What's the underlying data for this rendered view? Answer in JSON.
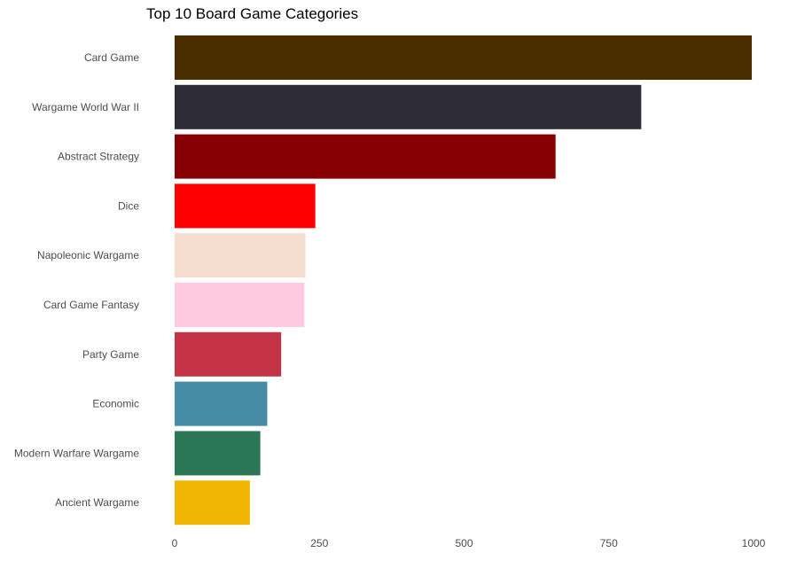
{
  "chart_data": {
    "type": "bar",
    "orientation": "horizontal",
    "title": "Top 10 Board Game Categories",
    "xlabel": "",
    "ylabel": "",
    "xlim": [
      0,
      1000
    ],
    "x_ticks": [
      0,
      250,
      500,
      750,
      1000
    ],
    "grid": false,
    "legend": "none",
    "categories": [
      "Card Game",
      "Wargame World War II",
      "Abstract Strategy",
      "Dice",
      "Napoleonic Wargame",
      "Card Game Fantasy",
      "Party Game",
      "Economic",
      "Modern Warfare Wargame",
      "Ancient Wargame"
    ],
    "values": [
      997,
      806,
      658,
      243,
      226,
      224,
      184,
      160,
      148,
      130
    ],
    "colors": [
      "#4a2e00",
      "#2e2c37",
      "#870003",
      "#ff0000",
      "#f5ddcf",
      "#ffcae0",
      "#c43246",
      "#478ca7",
      "#2b7755",
      "#f0b603"
    ]
  }
}
